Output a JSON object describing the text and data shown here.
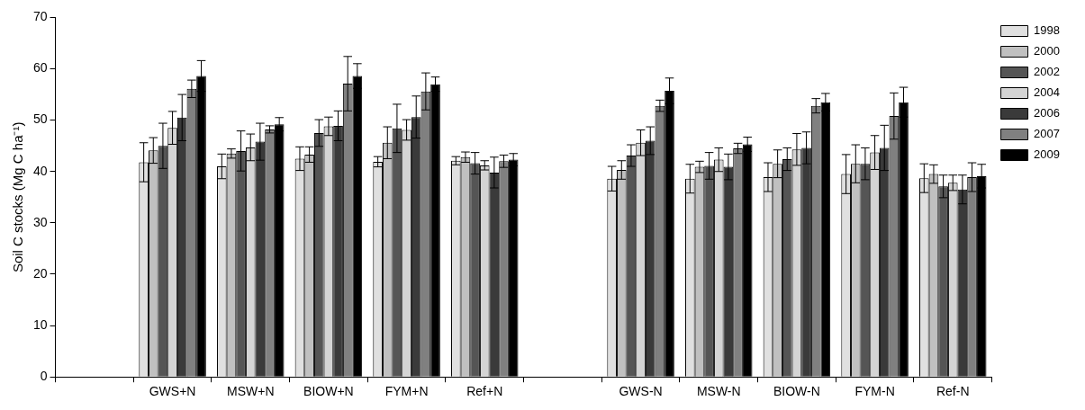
{
  "chart_data": {
    "type": "bar",
    "ylabel": "Soil C stocks (Mg C ha⁻¹)",
    "categories": [
      null,
      "GWS+N",
      "MSW+N",
      "BIOW+N",
      "FYM+N",
      "Ref+N",
      null,
      "GWS-N",
      "MSW-N",
      "BIOW-N",
      "FYM-N",
      "Ref-N"
    ],
    "ylim": [
      0,
      70
    ],
    "yticks": [
      0,
      10,
      20,
      30,
      40,
      50,
      60,
      70
    ],
    "grid": false,
    "legend": "top right",
    "series": [
      {
        "name": "1998",
        "color": "#e0e0e0",
        "values": [
          null,
          41.8,
          41.0,
          42.5,
          41.9,
          42.1,
          null,
          38.6,
          38.6,
          38.9,
          39.5,
          38.7
        ],
        "errors": [
          null,
          3.8,
          2.4,
          2.3,
          1.0,
          0.8,
          null,
          2.4,
          2.8,
          2.8,
          3.8,
          2.8
        ]
      },
      {
        "name": "2000",
        "color": "#c0c0c0",
        "values": [
          null,
          44.1,
          43.5,
          43.3,
          45.6,
          42.8,
          null,
          40.3,
          40.9,
          41.5,
          41.5,
          39.5
        ],
        "errors": [
          null,
          2.5,
          0.9,
          1.5,
          3.1,
          1.0,
          null,
          1.8,
          1.1,
          2.7,
          3.7,
          1.8
        ]
      },
      {
        "name": "2002",
        "color": "#555555",
        "values": [
          null,
          45.0,
          44.0,
          47.5,
          48.4,
          41.6,
          null,
          43.1,
          41.1,
          42.4,
          41.5,
          37.1
        ],
        "errors": [
          null,
          4.4,
          3.9,
          2.6,
          4.7,
          2.1,
          null,
          2.1,
          2.6,
          2.2,
          3.1,
          2.2
        ]
      },
      {
        "name": "2004",
        "color": "#d4d4d4",
        "values": [
          null,
          48.5,
          44.7,
          48.8,
          48.1,
          41.2,
          null,
          45.6,
          42.3,
          44.3,
          43.7,
          37.8
        ],
        "errors": [
          null,
          3.2,
          2.6,
          1.8,
          2.0,
          0.9,
          null,
          2.5,
          2.3,
          3.1,
          3.3,
          1.5
        ]
      },
      {
        "name": "2006",
        "color": "#3a3a3a",
        "values": [
          null,
          50.5,
          45.8,
          48.9,
          50.6,
          39.8,
          null,
          46.0,
          40.9,
          44.6,
          44.6,
          36.5
        ],
        "errors": [
          null,
          4.5,
          3.6,
          2.9,
          4.1,
          3.0,
          null,
          2.7,
          2.5,
          3.1,
          4.4,
          2.8
        ]
      },
      {
        "name": "2007",
        "color": "#808080",
        "values": [
          null,
          56.1,
          48.2,
          57.1,
          55.6,
          42.0,
          null,
          52.8,
          44.5,
          52.8,
          50.8,
          38.9
        ],
        "errors": [
          null,
          1.7,
          0.7,
          5.3,
          3.6,
          1.2,
          null,
          1.1,
          1.0,
          1.4,
          4.5,
          2.8
        ]
      },
      {
        "name": "2009",
        "color": "#000000",
        "values": [
          null,
          58.6,
          49.2,
          58.6,
          57.0,
          42.3,
          null,
          55.7,
          45.3,
          53.5,
          53.5,
          39.1
        ],
        "errors": [
          null,
          3.0,
          1.3,
          2.4,
          1.4,
          1.2,
          null,
          2.5,
          1.4,
          1.7,
          2.9,
          2.3
        ]
      }
    ]
  }
}
